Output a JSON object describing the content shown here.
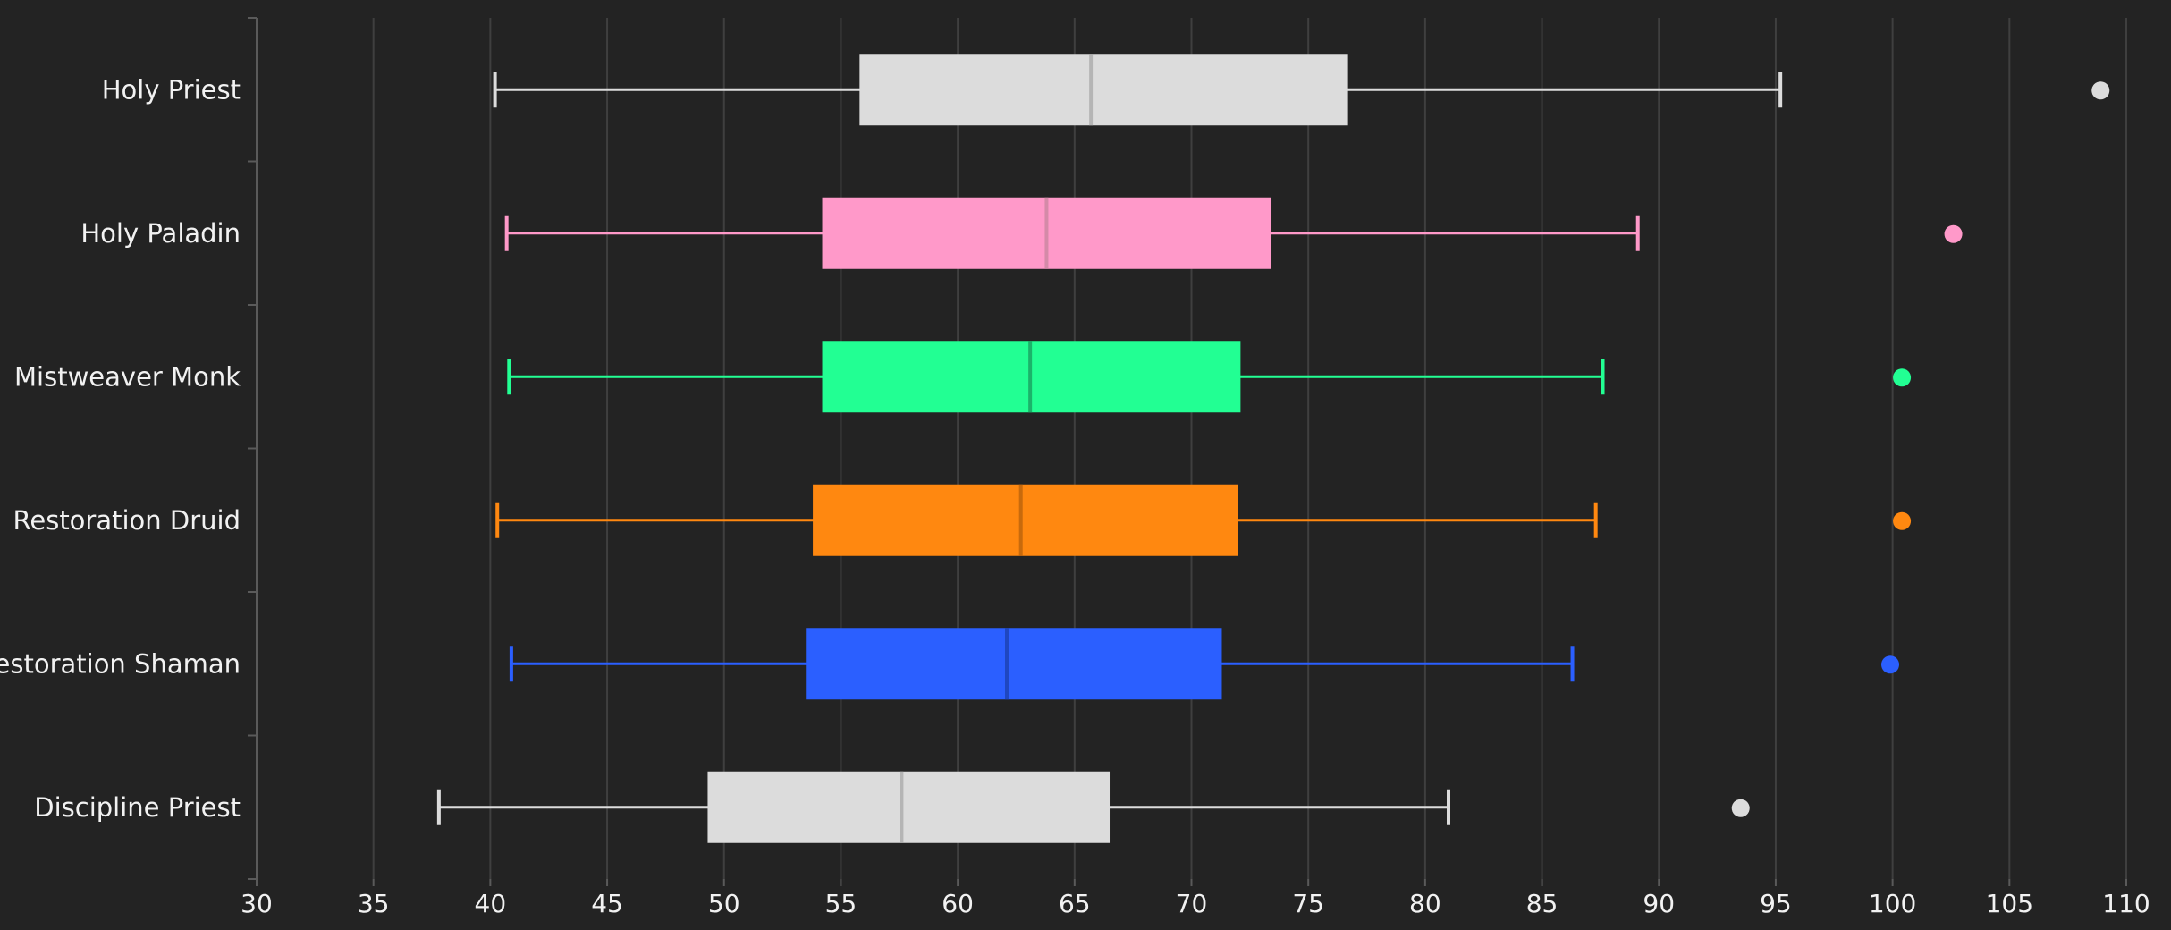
{
  "chart_data": {
    "type": "boxplot",
    "orientation": "horizontal",
    "title": "",
    "xlabel": "",
    "ylabel": "",
    "xlim": [
      30,
      110
    ],
    "xticks": [
      30,
      35,
      40,
      45,
      50,
      55,
      60,
      65,
      70,
      75,
      80,
      85,
      90,
      95,
      100,
      105,
      110
    ],
    "grid": "vertical",
    "legend": "none",
    "categories": [
      "Holy Priest",
      "Holy Paladin",
      "Mistweaver Monk",
      "Restoration Druid",
      "Restoration Shaman",
      "Discipline Priest"
    ],
    "series": [
      {
        "category": "Holy Priest",
        "whisker_low": 40.2,
        "q1": 55.8,
        "median": 65.7,
        "q3": 76.7,
        "whisker_high": 95.2,
        "outlier": 108.9,
        "color": "#dcdcdc",
        "median_color": "#b5b5b5"
      },
      {
        "category": "Holy Paladin",
        "whisker_low": 40.7,
        "q1": 54.2,
        "median": 63.8,
        "q3": 73.4,
        "whisker_high": 89.1,
        "outlier": 102.6,
        "color": "#ff99c9",
        "median_color": "#d48aa8"
      },
      {
        "category": "Mistweaver Monk",
        "whisker_low": 40.8,
        "q1": 54.2,
        "median": 63.1,
        "q3": 72.1,
        "whisker_high": 87.6,
        "outlier": 100.4,
        "color": "#22ff93",
        "median_color": "#1bb36a"
      },
      {
        "category": "Restoration Druid",
        "whisker_low": 40.3,
        "q1": 53.8,
        "median": 62.7,
        "q3": 72.0,
        "whisker_high": 87.3,
        "outlier": 100.4,
        "color": "#ff8810",
        "median_color": "#c86a0c"
      },
      {
        "category": "Restoration Shaman",
        "whisker_low": 40.9,
        "q1": 53.5,
        "median": 62.1,
        "q3": 71.3,
        "whisker_high": 86.3,
        "outlier": 99.9,
        "color": "#2b5fff",
        "median_color": "#1f47c0"
      },
      {
        "category": "Discipline Priest",
        "whisker_low": 37.8,
        "q1": 49.3,
        "median": 57.6,
        "q3": 66.5,
        "whisker_high": 81.0,
        "outlier": 93.5,
        "color": "#dcdcdc",
        "median_color": "#b5b5b5"
      }
    ]
  }
}
